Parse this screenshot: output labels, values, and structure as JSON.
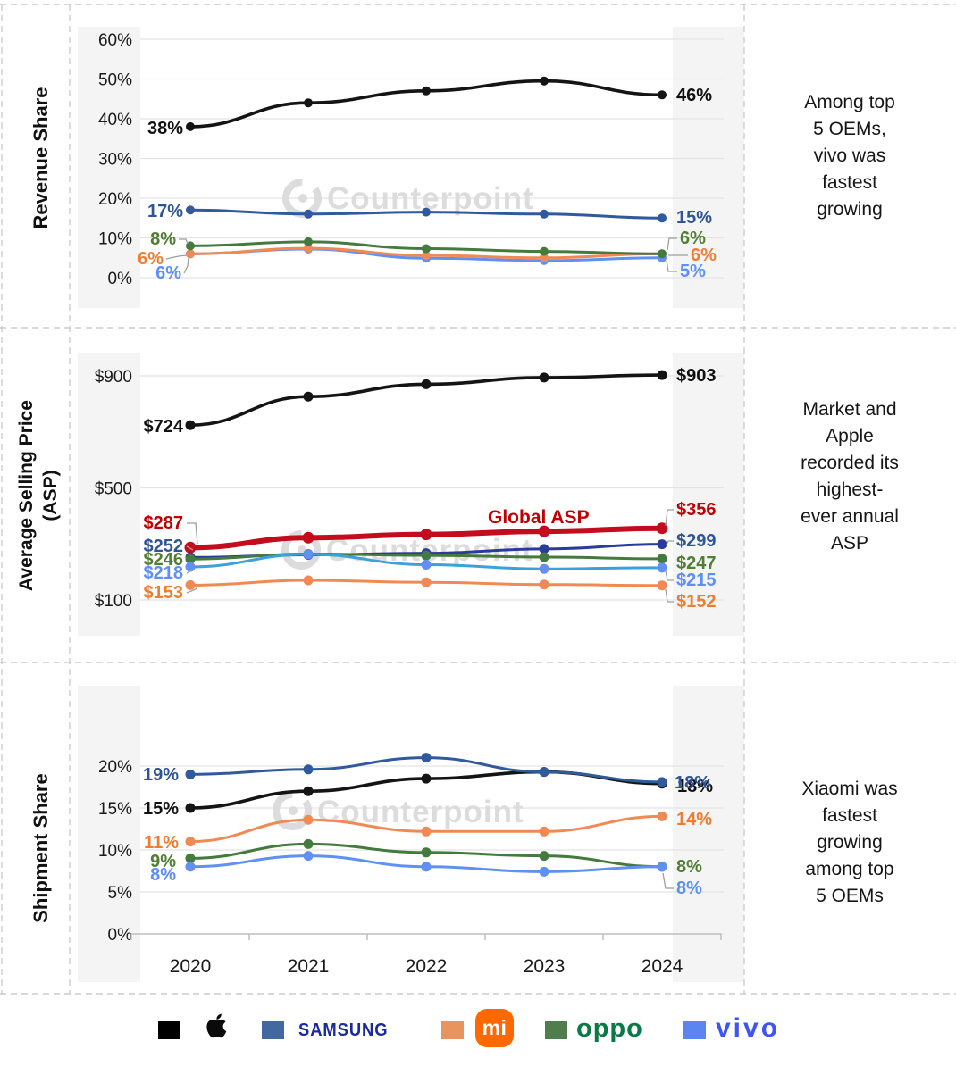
{
  "watermark": "Counterpoint",
  "chart_data": [
    {
      "type": "line",
      "panel": "revenue-share",
      "ylabel": "Revenue Share",
      "annotation": "Among top\n5 OEMs,\nvivo was\nfastest\ngrowing",
      "x": [
        "2020",
        "2021",
        "2022",
        "2023",
        "2024"
      ],
      "ylim": [
        0,
        60
      ],
      "yticks": [
        {
          "v": 0,
          "label": "0%"
        },
        {
          "v": 10,
          "label": "10%"
        },
        {
          "v": 20,
          "label": "20%"
        },
        {
          "v": 30,
          "label": "30%"
        },
        {
          "v": 40,
          "label": "40%"
        },
        {
          "v": 50,
          "label": "50%"
        },
        {
          "v": 60,
          "label": "60%"
        }
      ],
      "grid": true,
      "series": [
        {
          "name": "Apple",
          "color": "#141414",
          "label_color": "#111111",
          "width": 3.6,
          "values": [
            38,
            44,
            47,
            49.5,
            46
          ],
          "left_label": "38%",
          "right_label": "46%"
        },
        {
          "name": "Samsung",
          "color": "#315A9D",
          "label_color": "#2F5597",
          "width": 3,
          "values": [
            17,
            16,
            16.5,
            16,
            15
          ],
          "left_label": "17%",
          "right_label": "15%"
        },
        {
          "name": "OPPO",
          "color": "#447A3D",
          "label_color": "#507E32",
          "width": 3,
          "values": [
            8,
            9,
            7.3,
            6.6,
            6
          ],
          "left_label": "8%",
          "right_label": "6%"
        },
        {
          "name": "Xiaomi",
          "color": "#F08A55",
          "label_color": "#ED7D31",
          "width": 3,
          "values": [
            6,
            7.4,
            5.6,
            5,
            6
          ],
          "left_label": "6%",
          "right_label": "6%"
        },
        {
          "name": "vivo",
          "color": "#5F90F2",
          "label_color": "#5B8FF9",
          "width": 3,
          "values": [
            6,
            7.2,
            4.9,
            4.3,
            5
          ],
          "left_label": "6%",
          "right_label": "5%"
        }
      ]
    },
    {
      "type": "line",
      "panel": "asp",
      "ylabel": "Average Selling Price\n(ASP)",
      "annotation": "Market and\nApple\nrecorded its\nhighest-\never annual\nASP",
      "x": [
        "2020",
        "2021",
        "2022",
        "2023",
        "2024"
      ],
      "ylim": [
        100,
        900
      ],
      "yticks": [
        {
          "v": 100,
          "label": "$100"
        },
        {
          "v": 500,
          "label": "$500"
        },
        {
          "v": 900,
          "label": "$900"
        }
      ],
      "grid": true,
      "line_label": {
        "text": "Global ASP",
        "color": "#C00000"
      },
      "series": [
        {
          "name": "Apple",
          "color": "#141414",
          "label_color": "#111111",
          "width": 3.6,
          "values": [
            724,
            826,
            870,
            894,
            903
          ],
          "left_label": "$724",
          "right_label": "$903"
        },
        {
          "name": "Global ASP",
          "color": "#C30D1F",
          "label_color": "#C00000",
          "width": 6,
          "values": [
            287,
            322,
            334,
            345,
            356
          ],
          "left_label": "$287",
          "right_label": "$356"
        },
        {
          "name": "Samsung",
          "color": "#2B3A9E",
          "label_color": "#2F5597",
          "width": 3,
          "values": [
            252,
            261,
            267,
            282,
            299
          ],
          "left_label": "$252",
          "right_label": "$299"
        },
        {
          "name": "OPPO",
          "color": "#447A3D",
          "label_color": "#507E32",
          "width": 3,
          "values": [
            246,
            264,
            259,
            253,
            247
          ],
          "left_label": "$246",
          "right_label": "$247"
        },
        {
          "name": "vivo",
          "color": "#3AA1DB",
          "marker_color": "#5F90F2",
          "label_color": "#5B8FF9",
          "width": 3,
          "values": [
            218,
            263,
            226,
            211,
            215
          ],
          "left_label": "$218",
          "right_label": "$215"
        },
        {
          "name": "Xiaomi",
          "color": "#F08A55",
          "label_color": "#ED7D31",
          "width": 3,
          "values": [
            153,
            170,
            163,
            155,
            152
          ],
          "left_label": "$153",
          "right_label": "$152"
        }
      ]
    },
    {
      "type": "line",
      "panel": "shipment-share",
      "ylabel": "Shipment Share",
      "annotation": "Xiaomi was\nfastest\ngrowing\namong top\n5 OEMs",
      "x": [
        "2020",
        "2021",
        "2022",
        "2023",
        "2024"
      ],
      "ylim": [
        0,
        20
      ],
      "yticks": [
        {
          "v": 0,
          "label": "0%"
        },
        {
          "v": 5,
          "label": "5%"
        },
        {
          "v": 10,
          "label": "10%"
        },
        {
          "v": 15,
          "label": "15%"
        },
        {
          "v": 20,
          "label": "20%"
        }
      ],
      "grid": true,
      "series": [
        {
          "name": "Samsung",
          "color": "#315A9D",
          "label_color": "#2F5597",
          "width": 3,
          "values": [
            19,
            19.6,
            21,
            19.3,
            18.1
          ],
          "left_label": "19%",
          "right_label": "18%"
        },
        {
          "name": "Apple",
          "color": "#141414",
          "label_color": "#111111",
          "width": 3.6,
          "values": [
            15,
            17,
            18.5,
            19.3,
            17.9
          ],
          "left_label": "15%",
          "right_label": "18%"
        },
        {
          "name": "Xiaomi",
          "color": "#F08A55",
          "label_color": "#ED7D31",
          "width": 3,
          "values": [
            11,
            13.6,
            12.2,
            12.2,
            14
          ],
          "left_label": "11%",
          "right_label": "14%"
        },
        {
          "name": "OPPO",
          "color": "#447A3D",
          "label_color": "#507E32",
          "width": 3,
          "values": [
            9,
            10.7,
            9.7,
            9.3,
            8
          ],
          "left_label": "9%",
          "right_label": "8%"
        },
        {
          "name": "vivo",
          "color": "#5F90F2",
          "label_color": "#5B8FF9",
          "width": 3,
          "values": [
            8,
            9.3,
            8,
            7.4,
            8
          ],
          "left_label": "8%",
          "right_label": "8%"
        }
      ]
    }
  ],
  "legend": {
    "items": [
      {
        "name": "Apple",
        "swatch_color": "#000000"
      },
      {
        "name": "Samsung",
        "swatch_color": "#4169A0",
        "wordmark": "SAMSUNG",
        "wordmark_color": "#1B2A9B"
      },
      {
        "name": "Xiaomi",
        "swatch_color": "#E9945E",
        "wordmark": "mi",
        "logo_bg": "#FF6900"
      },
      {
        "name": "OPPO",
        "swatch_color": "#4F7D4B",
        "wordmark": "oppo",
        "wordmark_color": "#0A7A45"
      },
      {
        "name": "vivo",
        "swatch_color": "#5B86F2",
        "wordmark": "vivo",
        "wordmark_color": "#3D56F0"
      }
    ]
  }
}
